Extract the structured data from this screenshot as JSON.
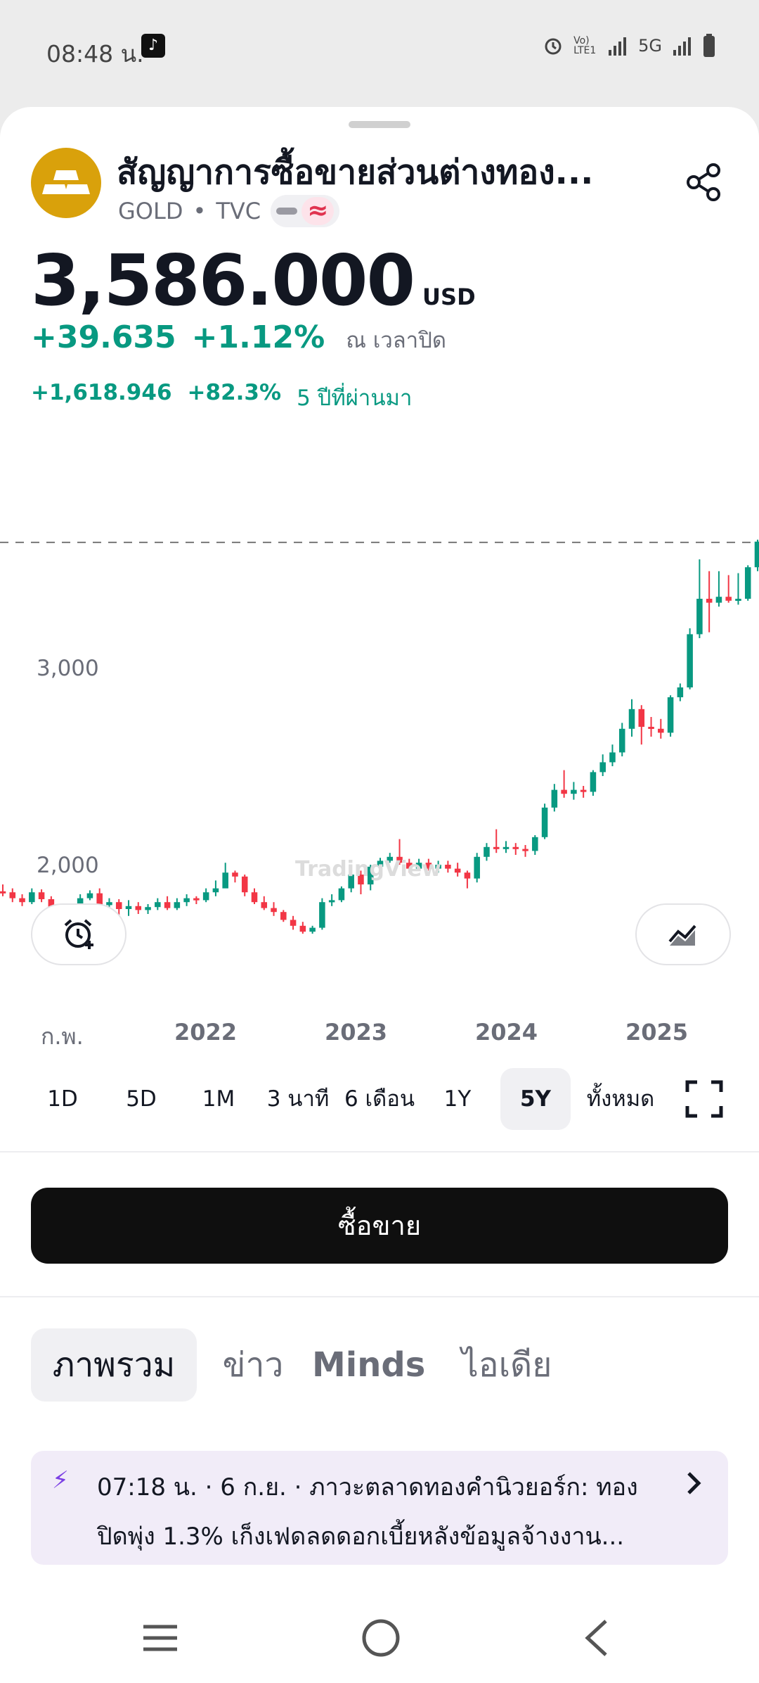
{
  "status_bar": {
    "time": "08:48 น.",
    "network": "5G",
    "lte": "Vo) LTE1"
  },
  "header": {
    "title": "สัญญาการซื้อขายส่วนต่างทอง...",
    "symbol": "GOLD",
    "exchange": "TVC",
    "separator": "•",
    "wave_badge": "≈",
    "share_icon": "share-icon"
  },
  "quote": {
    "price": "3,586.000",
    "currency": "USD",
    "change_abs": "+39.635",
    "change_pct": "+1.12%",
    "change_note": "ณ เวลาปิด",
    "perf_abs": "+1,618.946",
    "perf_pct": "+82.3%",
    "perf_period": "5 ปีที่ผ่านมา"
  },
  "chart_data": {
    "type": "candlestick",
    "title": "",
    "y_tick_labels": [
      "3,000",
      "2,000"
    ],
    "x_tick_labels": [
      "ก.พ.",
      "2022",
      "2023",
      "2024",
      "2025"
    ],
    "last_price_line": 3586,
    "watermark": "TradingView",
    "colors": {
      "up": "#089981",
      "down": "#f23645"
    },
    "candles": [
      [
        1815,
        1810,
        1850,
        1790
      ],
      [
        1810,
        1780,
        1830,
        1760
      ],
      [
        1780,
        1760,
        1800,
        1740
      ],
      [
        1760,
        1810,
        1830,
        1750
      ],
      [
        1810,
        1775,
        1825,
        1760
      ],
      [
        1775,
        1715,
        1790,
        1700
      ],
      [
        1715,
        1680,
        1730,
        1660
      ],
      [
        1680,
        1715,
        1730,
        1670
      ],
      [
        1715,
        1780,
        1800,
        1700
      ],
      [
        1780,
        1805,
        1820,
        1770
      ],
      [
        1805,
        1745,
        1830,
        1725
      ],
      [
        1745,
        1760,
        1780,
        1720
      ],
      [
        1760,
        1725,
        1775,
        1640
      ],
      [
        1725,
        1740,
        1770,
        1690
      ],
      [
        1740,
        1720,
        1760,
        1700
      ],
      [
        1720,
        1735,
        1750,
        1700
      ],
      [
        1735,
        1760,
        1780,
        1720
      ],
      [
        1760,
        1730,
        1790,
        1720
      ],
      [
        1730,
        1760,
        1780,
        1720
      ],
      [
        1760,
        1780,
        1800,
        1740
      ],
      [
        1780,
        1770,
        1790,
        1750
      ],
      [
        1770,
        1810,
        1830,
        1760
      ],
      [
        1810,
        1830,
        1870,
        1790
      ],
      [
        1830,
        1910,
        1960,
        1860
      ],
      [
        1910,
        1890,
        1920,
        1860
      ],
      [
        1890,
        1810,
        1900,
        1790
      ],
      [
        1810,
        1760,
        1830,
        1750
      ],
      [
        1760,
        1730,
        1790,
        1720
      ],
      [
        1730,
        1710,
        1760,
        1690
      ],
      [
        1710,
        1670,
        1720,
        1660
      ],
      [
        1670,
        1640,
        1690,
        1620
      ],
      [
        1640,
        1610,
        1660,
        1600
      ],
      [
        1610,
        1630,
        1640,
        1600
      ],
      [
        1630,
        1760,
        1780,
        1620
      ],
      [
        1760,
        1770,
        1800,
        1740
      ],
      [
        1770,
        1830,
        1840,
        1760
      ],
      [
        1830,
        1900,
        1920,
        1810
      ],
      [
        1900,
        1850,
        1920,
        1800
      ],
      [
        1850,
        1940,
        1950,
        1820
      ],
      [
        1940,
        1970,
        1985,
        1920
      ],
      [
        1970,
        1990,
        2010,
        1960
      ],
      [
        1990,
        1960,
        2080,
        1950
      ],
      [
        1960,
        1930,
        1980,
        1910
      ],
      [
        1930,
        1960,
        1980,
        1920
      ],
      [
        1960,
        1930,
        1980,
        1920
      ],
      [
        1930,
        1950,
        1970,
        1910
      ],
      [
        1950,
        1930,
        1970,
        1910
      ],
      [
        1930,
        1910,
        1960,
        1890
      ],
      [
        1910,
        1880,
        1920,
        1830
      ],
      [
        1880,
        1990,
        2010,
        1860
      ],
      [
        1990,
        2040,
        2060,
        1970
      ],
      [
        2040,
        2030,
        2130,
        2010
      ],
      [
        2030,
        2040,
        2070,
        2010
      ],
      [
        2040,
        2030,
        2060,
        2000
      ],
      [
        2030,
        2020,
        2050,
        1990
      ],
      [
        2020,
        2090,
        2100,
        2000
      ],
      [
        2090,
        2240,
        2260,
        2080
      ],
      [
        2240,
        2330,
        2360,
        2220
      ],
      [
        2330,
        2310,
        2430,
        2290
      ],
      [
        2310,
        2330,
        2370,
        2280
      ],
      [
        2330,
        2320,
        2350,
        2290
      ],
      [
        2320,
        2420,
        2430,
        2300
      ],
      [
        2420,
        2470,
        2510,
        2400
      ],
      [
        2470,
        2520,
        2560,
        2450
      ],
      [
        2520,
        2640,
        2670,
        2500
      ],
      [
        2640,
        2740,
        2790,
        2600
      ],
      [
        2740,
        2650,
        2760,
        2560
      ],
      [
        2650,
        2640,
        2700,
        2600
      ],
      [
        2640,
        2620,
        2690,
        2590
      ],
      [
        2620,
        2800,
        2810,
        2600
      ],
      [
        2800,
        2850,
        2870,
        2780
      ],
      [
        2850,
        3120,
        3150,
        2840
      ],
      [
        3120,
        3300,
        3500,
        3100
      ],
      [
        3300,
        3280,
        3440,
        3130
      ],
      [
        3280,
        3310,
        3440,
        3260
      ],
      [
        3310,
        3290,
        3420,
        3280
      ],
      [
        3290,
        3300,
        3430,
        3270
      ],
      [
        3300,
        3460,
        3470,
        3290
      ],
      [
        3460,
        3590,
        3600,
        3440
      ]
    ]
  },
  "toolbar": {
    "alert_icon": "alarm-add-icon",
    "indicator_icon": "chart-indicator-icon"
  },
  "ranges": [
    "1D",
    "5D",
    "1M",
    "3 นาที",
    "6 เดือน",
    "1Y",
    "5Y",
    "ทั้งหมด"
  ],
  "active_range": "5Y",
  "trade_button": "ซื้อขาย",
  "tabs": [
    "ภาพรวม",
    "ข่าว",
    "Minds",
    "ไอเดีย"
  ],
  "news": {
    "line1": "07:18 น. · 6 ก.ย. · ภาวะตลาดทองคำนิวยอร์ก: ทอง",
    "line2": "ปิดพุ่ง 1.3% เก็งเฟดลดดอกเบี้ยหลังข้อมูลจ้างงาน..."
  }
}
